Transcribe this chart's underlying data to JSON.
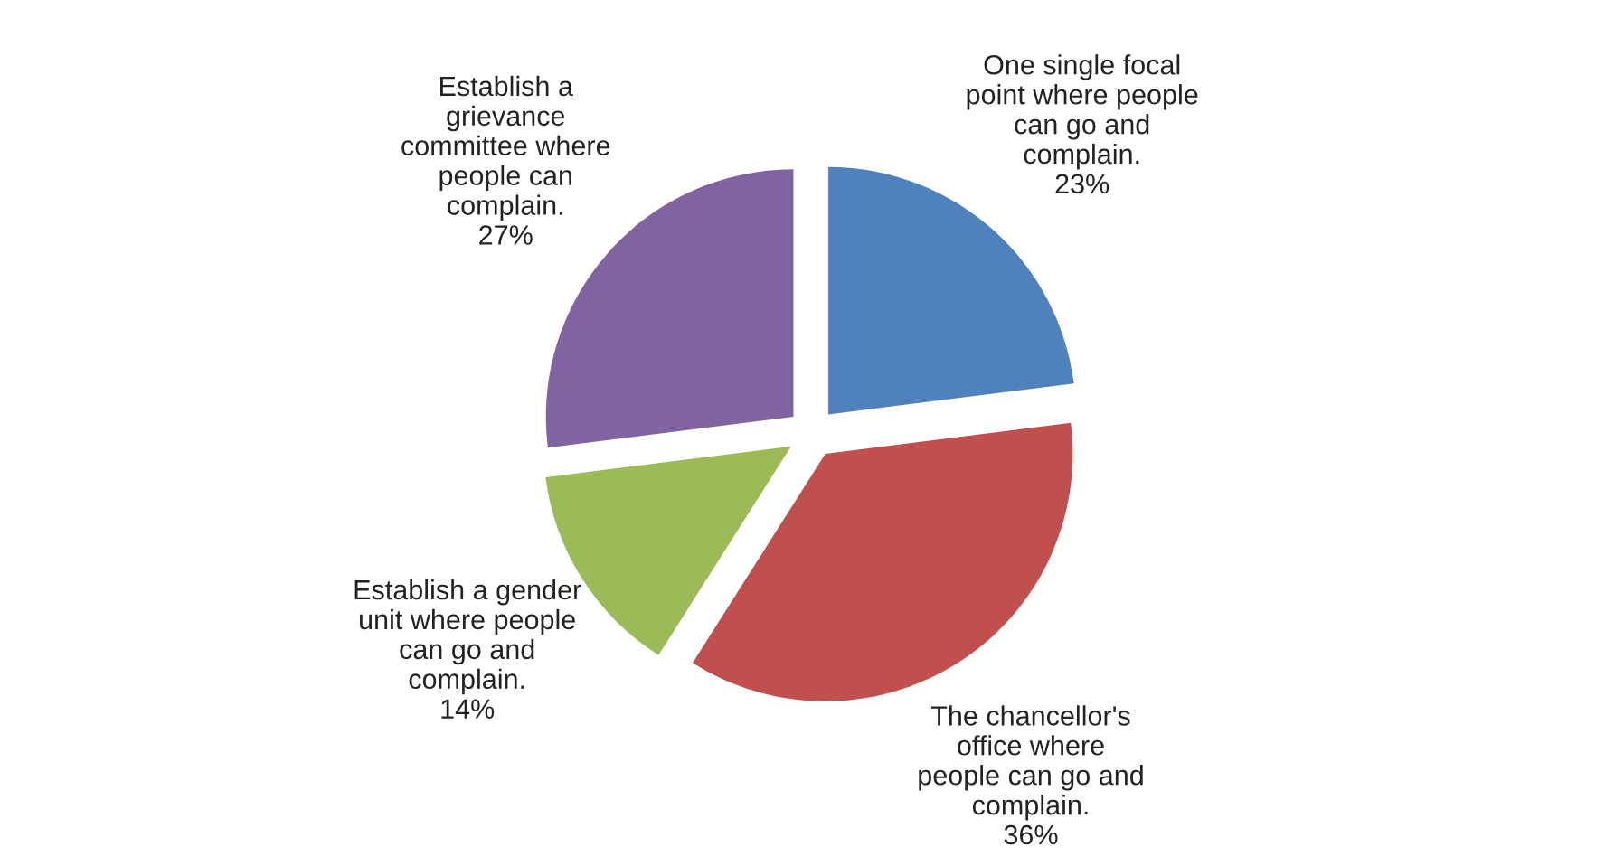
{
  "chart_data": {
    "type": "pie",
    "categories": [
      "One single focal point where people can go and complain.",
      "The chancellor's office where people can go and complain.",
      "Establish a gender unit where people can go and complain.",
      "Establish a grievance committee where people can complain."
    ],
    "values": [
      23,
      36,
      14,
      27
    ],
    "value_labels": [
      "23%",
      "36%",
      "14%",
      "27%"
    ],
    "colors": [
      "#4f81bd",
      "#c0504d",
      "#9bbb59",
      "#8064a2"
    ],
    "legend": false
  }
}
